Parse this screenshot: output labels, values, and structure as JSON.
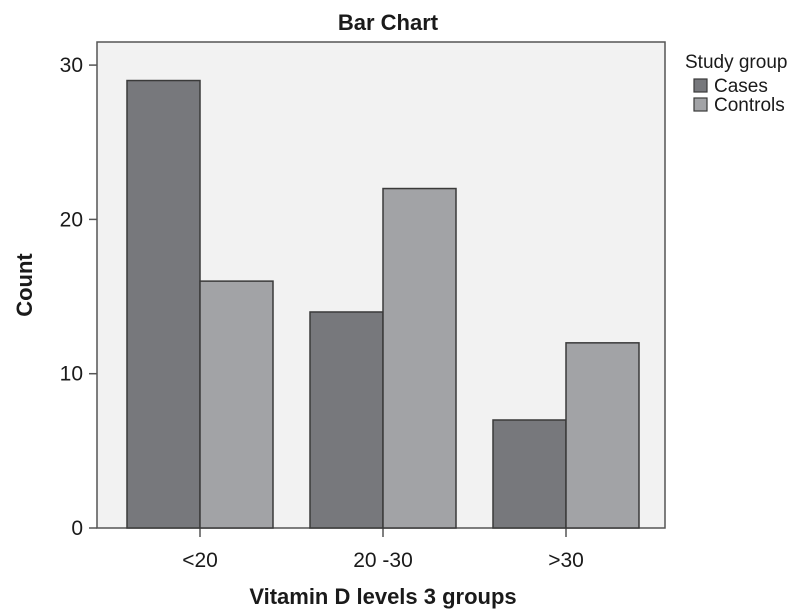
{
  "chart_data": {
    "type": "bar",
    "title": "Bar Chart",
    "xlabel": "Vitamin D levels 3 groups",
    "ylabel": "Count",
    "categories": [
      "<20",
      "20 -30",
      ">30"
    ],
    "series": [
      {
        "name": "Cases",
        "values": [
          29,
          14,
          7
        ],
        "color": "#77787c"
      },
      {
        "name": "Controls",
        "values": [
          16,
          22,
          12
        ],
        "color": "#a2a3a6"
      }
    ],
    "ylim": [
      0,
      31.5
    ],
    "yticks": [
      "0",
      "10",
      "20",
      "30"
    ],
    "legend": {
      "title": "Study group",
      "placement": "top-right, outside plot"
    },
    "plot_background": "#f2f2f2",
    "grid": false
  }
}
